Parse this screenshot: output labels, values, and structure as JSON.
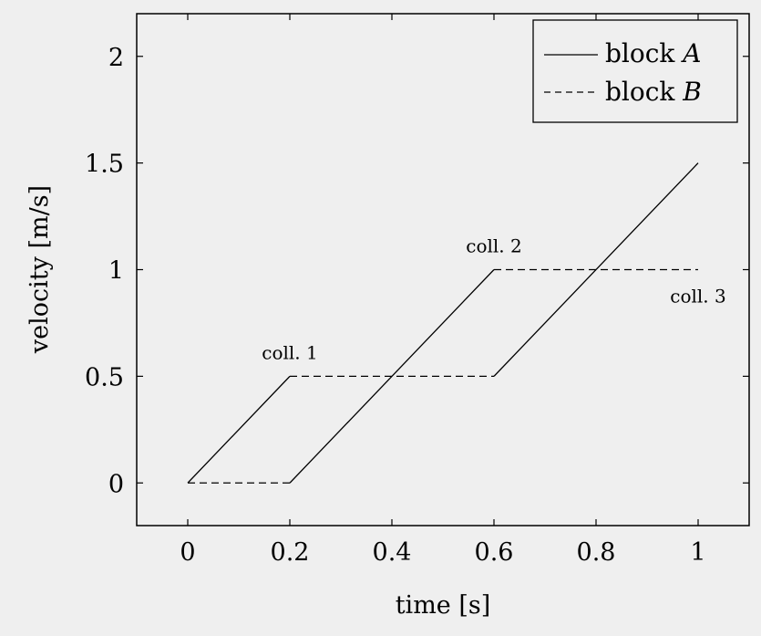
{
  "chart_data": {
    "type": "line",
    "xlabel": "time [s]",
    "ylabel": "velocity [m/s]",
    "xlim": [
      -0.1,
      1.1
    ],
    "ylim": [
      -0.2,
      2.2
    ],
    "xticks": [
      0,
      0.2,
      0.4,
      0.6,
      0.8,
      1
    ],
    "xtick_labels": [
      "0",
      "0.2",
      "0.4",
      "0.6",
      "0.8",
      "1"
    ],
    "yticks": [
      0,
      0.5,
      1,
      1.5,
      2
    ],
    "ytick_labels": [
      "0",
      "0.5",
      "1",
      "1.5",
      "2"
    ],
    "grid": false,
    "legend_position": "top-right",
    "series": [
      {
        "name": "block A",
        "name_text": "block ",
        "name_var": "A",
        "style": "solid",
        "color": "#000000",
        "segments": [
          [
            [
              0,
              0
            ],
            [
              0.2,
              0.5
            ]
          ],
          [
            [
              0.2,
              0.0
            ],
            [
              0.6,
              1.0
            ]
          ],
          [
            [
              0.6,
              0.5
            ],
            [
              1.0,
              1.5
            ]
          ]
        ]
      },
      {
        "name": "block B",
        "name_text": "block ",
        "name_var": "B",
        "style": "dashed",
        "color": "#000000",
        "segments": [
          [
            [
              0,
              0
            ],
            [
              0.2,
              0
            ]
          ],
          [
            [
              0.2,
              0.5
            ],
            [
              0.6,
              0.5
            ]
          ],
          [
            [
              0.6,
              1.0
            ],
            [
              1.0,
              1.0
            ]
          ]
        ]
      }
    ],
    "annotations": [
      {
        "text": "coll. 1",
        "x": 0.2,
        "y": 0.5
      },
      {
        "text": "coll. 2",
        "x": 0.6,
        "y": 1.0
      },
      {
        "text": "coll. 3",
        "x": 1.0,
        "y": 1.0
      }
    ]
  }
}
